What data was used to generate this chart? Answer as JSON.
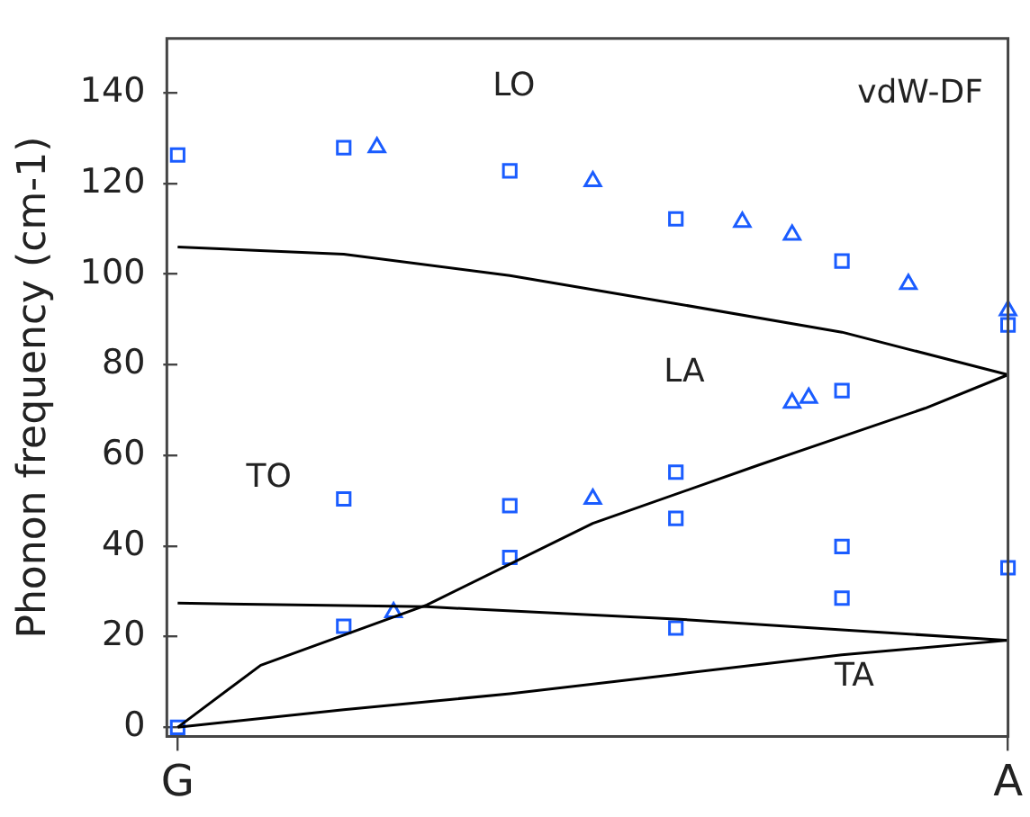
{
  "chart_data": {
    "type": "line",
    "ylabel": "Phonon frequency (cm-1)",
    "categories": [
      "G",
      null,
      null,
      null,
      null,
      null,
      null,
      null,
      null,
      null,
      null,
      null,
      null,
      null,
      null,
      null,
      null,
      null,
      null,
      null,
      null,
      null,
      null,
      null,
      null,
      null,
      null,
      null,
      null,
      null,
      null,
      null,
      null,
      null,
      null,
      null,
      null,
      null,
      null,
      null,
      null,
      null,
      null,
      null,
      null,
      null,
      null,
      null,
      null,
      null,
      "A"
    ],
    "ylim": [
      -2,
      152
    ],
    "yticks": [
      0,
      20,
      40,
      60,
      80,
      100,
      120,
      140
    ],
    "grid": false,
    "legend": false,
    "series": [
      {
        "type": "line",
        "color": "#000000",
        "marker": "none",
        "values": [
          106,
          null,
          null,
          null,
          null,
          null,
          null,
          null,
          null,
          null,
          104.4,
          null,
          null,
          null,
          null,
          null,
          null,
          null,
          null,
          null,
          99.7,
          null,
          null,
          null,
          null,
          null,
          null,
          null,
          null,
          null,
          93.5,
          null,
          null,
          null,
          null,
          null,
          null,
          null,
          null,
          null,
          87.2,
          null,
          null,
          null,
          null,
          null,
          null,
          null,
          null,
          null,
          77.8
        ]
      },
      {
        "type": "line",
        "color": "#000000",
        "marker": "none",
        "values": [
          0,
          null,
          null,
          null,
          null,
          13.7,
          null,
          null,
          null,
          null,
          null,
          null,
          null,
          null,
          null,
          27,
          null,
          null,
          null,
          null,
          null,
          null,
          null,
          null,
          null,
          45,
          null,
          null,
          null,
          null,
          null,
          null,
          null,
          null,
          null,
          57.9,
          null,
          null,
          null,
          null,
          null,
          null,
          null,
          null,
          null,
          70.4,
          null,
          null,
          null,
          null,
          77.8
        ]
      },
      {
        "type": "line",
        "color": "#000000",
        "marker": "none",
        "values": [
          27.4,
          null,
          null,
          null,
          null,
          null,
          null,
          null,
          null,
          null,
          null,
          null,
          null,
          null,
          null,
          26.6,
          null,
          null,
          null,
          null,
          null,
          null,
          null,
          null,
          null,
          null,
          null,
          null,
          null,
          null,
          23.9,
          null,
          null,
          null,
          null,
          null,
          null,
          null,
          null,
          null,
          21.5,
          null,
          null,
          null,
          null,
          null,
          null,
          null,
          null,
          null,
          19.2
        ]
      },
      {
        "type": "line",
        "color": "#000000",
        "marker": "none",
        "values": [
          0,
          null,
          null,
          null,
          null,
          null,
          null,
          null,
          null,
          null,
          3.9,
          null,
          null,
          null,
          null,
          null,
          null,
          null,
          null,
          null,
          7.4,
          null,
          null,
          null,
          null,
          null,
          null,
          null,
          null,
          null,
          11.7,
          null,
          null,
          null,
          null,
          null,
          null,
          null,
          null,
          null,
          16,
          null,
          null,
          null,
          null,
          null,
          null,
          null,
          null,
          null,
          19.2
        ]
      },
      {
        "type": "scatter",
        "color": "#1a5cff",
        "marker": "square",
        "values": [
          126.3,
          null,
          null,
          null,
          null,
          null,
          null,
          null,
          null,
          null,
          127.9,
          null,
          null,
          null,
          null,
          null,
          null,
          null,
          null,
          null,
          122.8,
          null,
          null,
          null,
          null,
          null,
          null,
          null,
          null,
          null,
          112.2,
          null,
          null,
          null,
          null,
          null,
          null,
          null,
          null,
          null,
          102.9,
          null,
          null,
          null,
          null,
          null,
          null,
          null,
          null,
          null,
          88.8
        ]
      },
      {
        "type": "scatter",
        "color": "#1a5cff",
        "marker": "square",
        "values": [
          null,
          null,
          null,
          null,
          null,
          null,
          null,
          null,
          null,
          null,
          50.4,
          null,
          null,
          null,
          null,
          null,
          null,
          null,
          null,
          null,
          48.9,
          null,
          null,
          null,
          null,
          null,
          null,
          null,
          null,
          null,
          56.3,
          null,
          null,
          null,
          null,
          null,
          null,
          null,
          null,
          null,
          74.3,
          null,
          null,
          null,
          null,
          null,
          null,
          null,
          null,
          null,
          35.2
        ]
      },
      {
        "type": "scatter",
        "color": "#1a5cff",
        "marker": "square",
        "values": [
          0,
          null,
          null,
          null,
          null,
          null,
          null,
          null,
          null,
          null,
          22.3,
          null,
          null,
          null,
          null,
          null,
          null,
          null,
          null,
          null,
          37.5,
          null,
          null,
          null,
          null,
          null,
          null,
          null,
          null,
          null,
          46.1,
          null,
          null,
          null,
          null,
          null,
          null,
          null,
          null,
          null,
          39.9,
          null,
          null,
          null,
          null,
          null,
          null,
          null,
          null,
          null,
          null
        ]
      },
      {
        "type": "scatter",
        "color": "#1a5cff",
        "marker": "square",
        "values": [
          null,
          null,
          null,
          null,
          null,
          null,
          null,
          null,
          null,
          null,
          null,
          null,
          null,
          null,
          null,
          null,
          null,
          null,
          null,
          null,
          null,
          null,
          null,
          null,
          null,
          null,
          null,
          null,
          null,
          null,
          21.9,
          null,
          null,
          null,
          null,
          null,
          null,
          null,
          null,
          null,
          28.5,
          null,
          null,
          null,
          null,
          null,
          null,
          null,
          null,
          null,
          null
        ]
      },
      {
        "type": "scatter",
        "color": "#1a5cff",
        "marker": "triangle",
        "values": [
          null,
          null,
          null,
          null,
          null,
          null,
          null,
          null,
          null,
          null,
          null,
          null,
          128,
          null,
          null,
          null,
          null,
          null,
          null,
          null,
          null,
          null,
          null,
          null,
          null,
          120.5,
          null,
          null,
          null,
          null,
          null,
          null,
          null,
          null,
          111.5,
          null,
          null,
          108.7,
          null,
          null,
          null,
          null,
          null,
          null,
          97.8,
          null,
          null,
          null,
          null,
          null,
          92
        ]
      },
      {
        "type": "scatter",
        "color": "#1a5cff",
        "marker": "triangle",
        "values": [
          null,
          null,
          null,
          null,
          null,
          null,
          null,
          null,
          null,
          null,
          null,
          null,
          null,
          25.4,
          null,
          null,
          null,
          null,
          null,
          null,
          null,
          null,
          null,
          null,
          null,
          50.4,
          null,
          null,
          null,
          null,
          null,
          null,
          null,
          null,
          null,
          null,
          null,
          71.6,
          null,
          null,
          null,
          null,
          null,
          null,
          null,
          null,
          null,
          null,
          null,
          null,
          null
        ]
      },
      {
        "type": "scatter",
        "color": "#1a5cff",
        "marker": "triangle",
        "values": [
          null,
          null,
          null,
          null,
          null,
          null,
          null,
          null,
          null,
          null,
          null,
          null,
          null,
          null,
          null,
          null,
          null,
          null,
          null,
          null,
          null,
          null,
          null,
          null,
          null,
          null,
          null,
          null,
          null,
          null,
          null,
          null,
          null,
          null,
          null,
          null,
          null,
          null,
          72.7,
          null,
          null,
          null,
          null,
          null,
          null,
          null,
          null,
          null,
          null,
          null,
          null
        ]
      }
    ],
    "annotations": [
      "LO",
      "LA",
      "TO",
      "TA",
      "vdW-DF"
    ]
  }
}
